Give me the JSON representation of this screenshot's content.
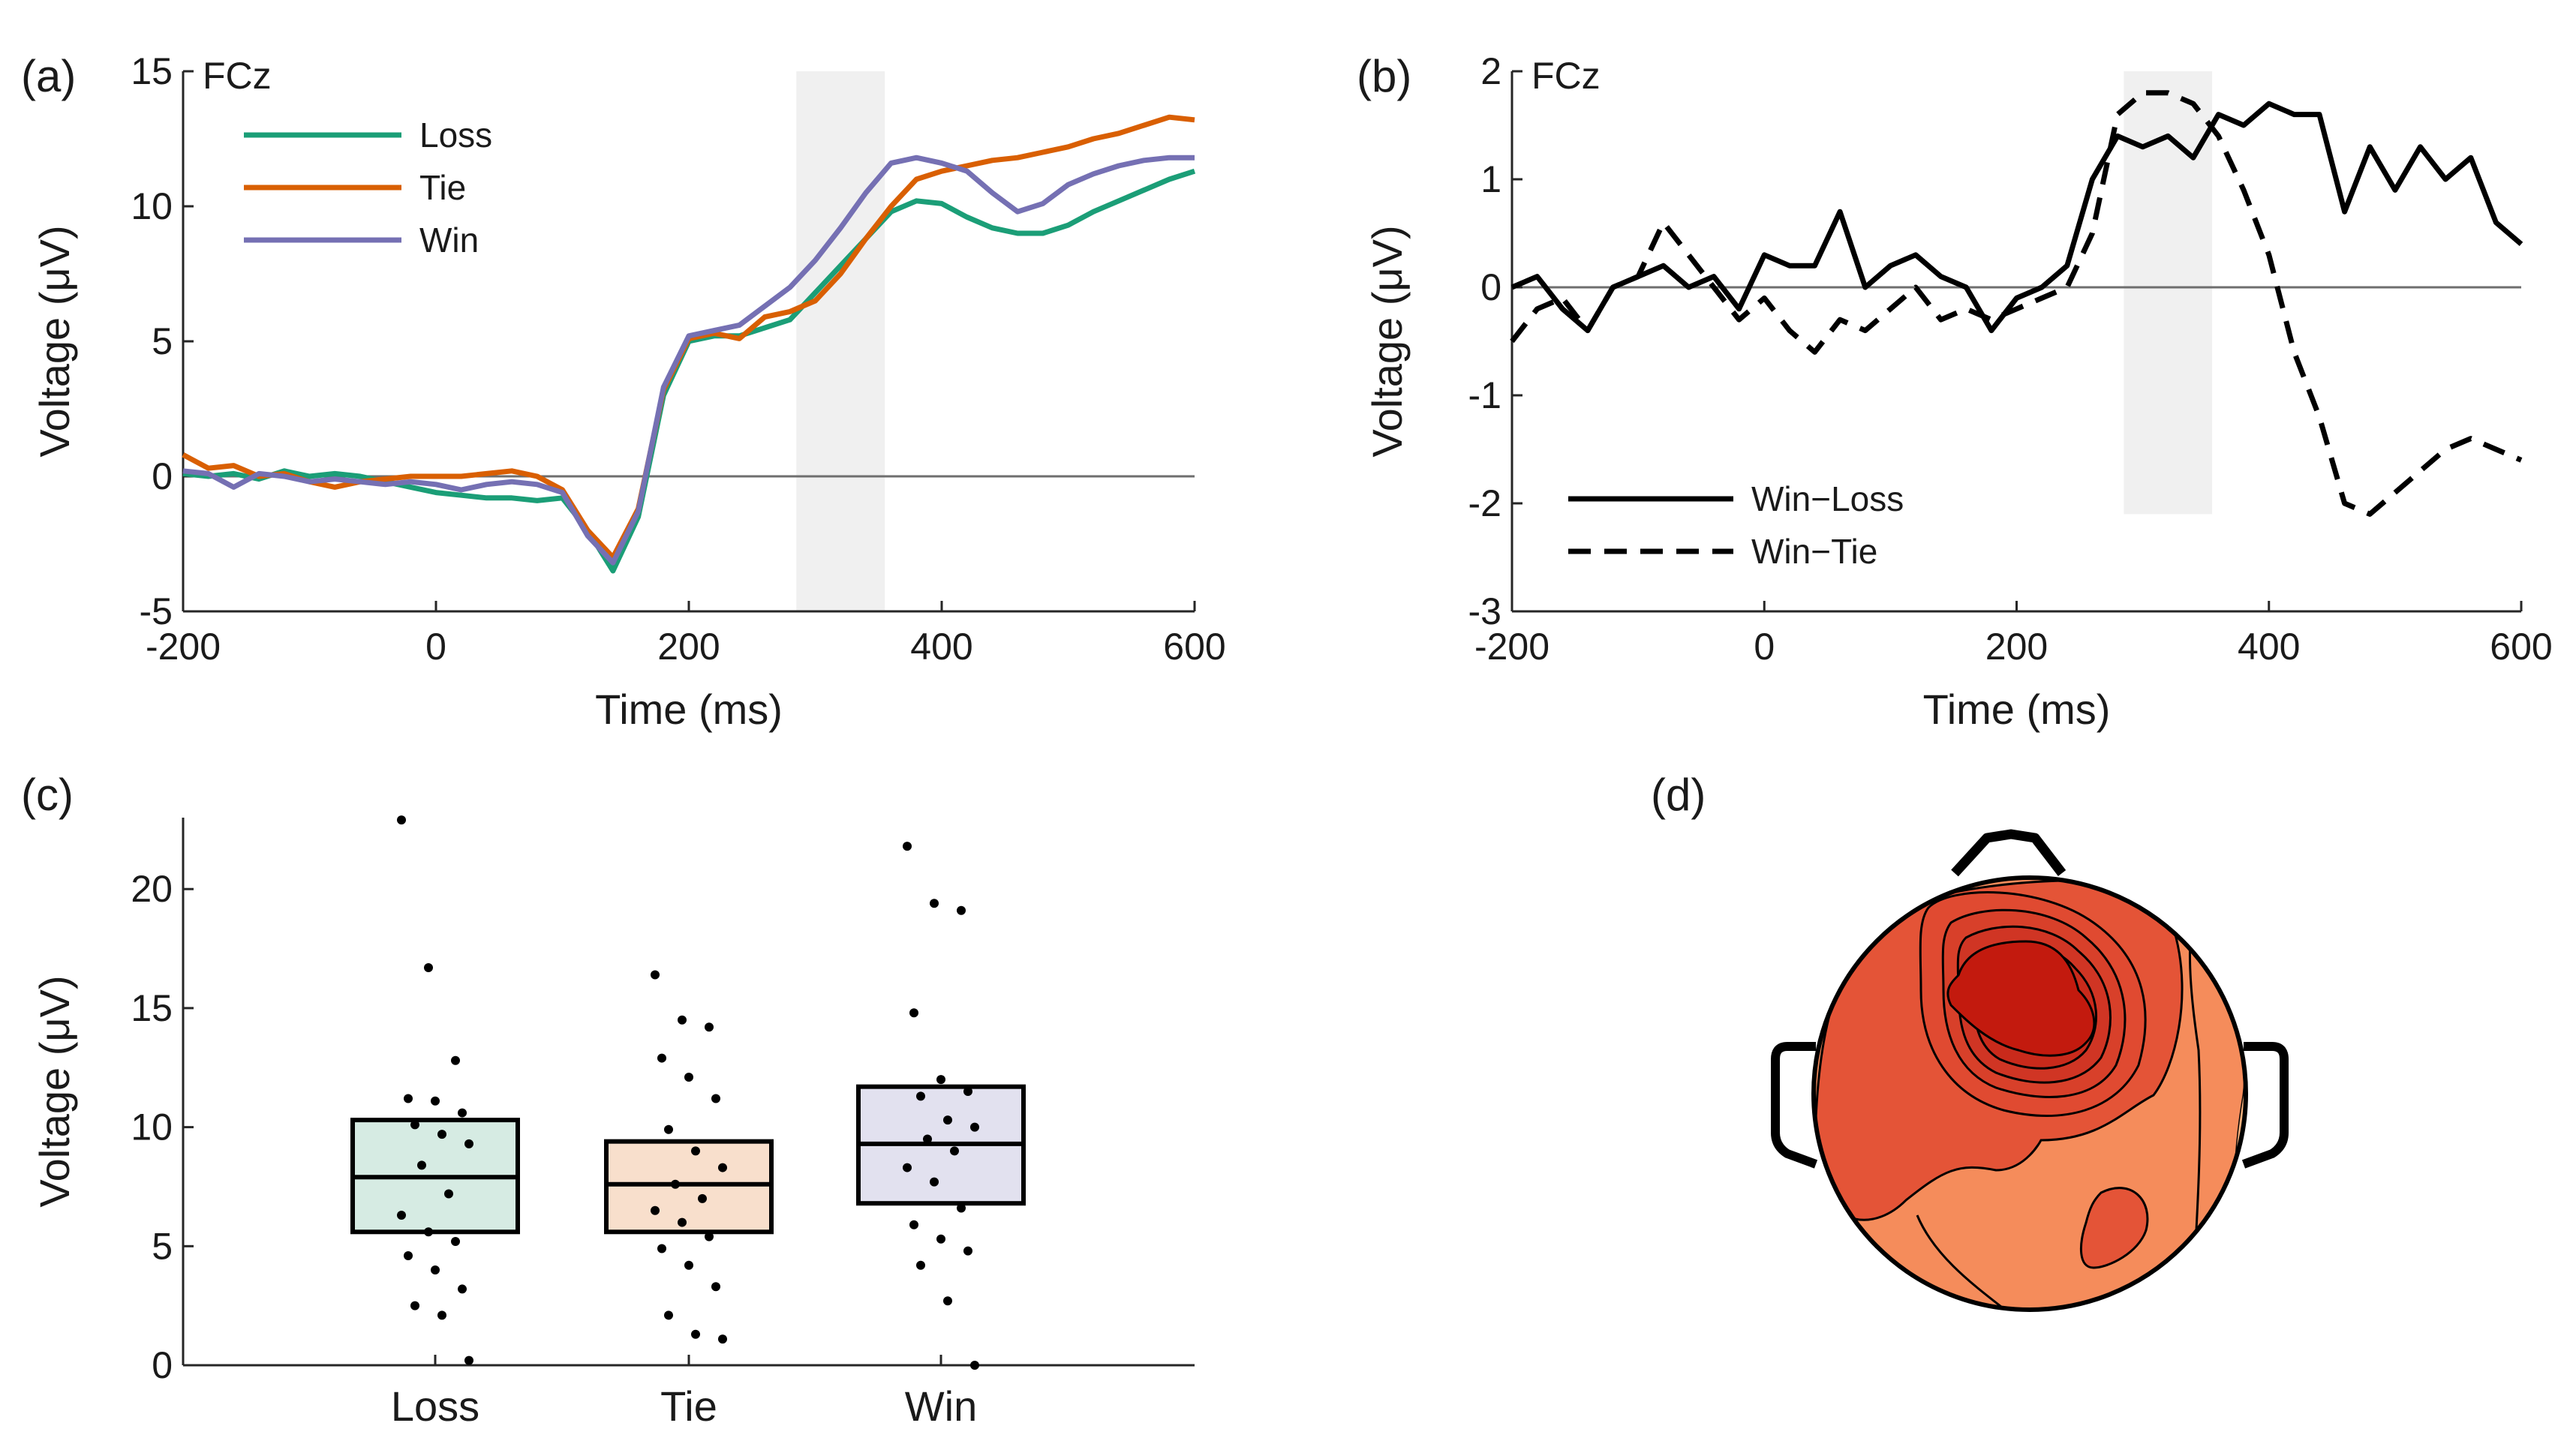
{
  "panels": {
    "a": {
      "label": "(a)",
      "electrode": "FCz",
      "xlabel": "Time (ms)",
      "ylabel": "Voltage (μV)",
      "xticks": [
        "-200",
        "0",
        "200",
        "400",
        "600"
      ],
      "yticks": [
        "-5",
        "0",
        "5",
        "10",
        "15"
      ]
    },
    "b": {
      "label": "(b)",
      "electrode": "FCz",
      "xlabel": "Time (ms)",
      "ylabel": "Voltage (μV)",
      "xticks": [
        "-200",
        "0",
        "200",
        "400",
        "600"
      ],
      "yticks": [
        "-3",
        "-2",
        "-1",
        "0",
        "1",
        "2"
      ]
    },
    "c": {
      "label": "(c)",
      "ylabel": "Voltage (μV)",
      "yticks": [
        "0",
        "5",
        "10",
        "15",
        "20"
      ]
    },
    "d": {
      "label": "(d)"
    }
  },
  "colors": {
    "loss": "#1b9e77",
    "tie": "#d95f02",
    "win": "#7570b3",
    "loss_box": "#d6ebe3",
    "tie_box": "#f8dfcc",
    "win_box": "#e2e1ef",
    "shade": "#f0f0f0",
    "topo_low": "#f7b27e",
    "topo_mid": "#ef7f4e",
    "topo_high": "#c31a0e"
  },
  "chart_data": [
    {
      "id": "a",
      "type": "line",
      "title": "FCz",
      "xlabel": "Time (ms)",
      "ylabel": "Voltage (μV)",
      "xlim": [
        -200,
        600
      ],
      "ylim": [
        -5,
        15
      ],
      "shaded_window": [
        285,
        355
      ],
      "zero_line": true,
      "legend_position": "top-left",
      "series": [
        {
          "name": "Loss",
          "x": [
            -200,
            -180,
            -160,
            -140,
            -120,
            -100,
            -80,
            -60,
            -40,
            -20,
            0,
            20,
            40,
            60,
            80,
            100,
            120,
            140,
            160,
            180,
            200,
            220,
            240,
            260,
            280,
            300,
            320,
            340,
            360,
            380,
            400,
            420,
            440,
            460,
            480,
            500,
            520,
            540,
            560,
            580,
            600
          ],
          "y": [
            0.1,
            0.0,
            0.1,
            -0.1,
            0.2,
            0.0,
            0.1,
            0.0,
            -0.2,
            -0.4,
            -0.6,
            -0.7,
            -0.8,
            -0.8,
            -0.9,
            -0.8,
            -2.0,
            -3.5,
            -1.5,
            3.0,
            5.0,
            5.2,
            5.2,
            5.5,
            5.8,
            6.8,
            7.8,
            8.8,
            9.8,
            10.2,
            10.1,
            9.6,
            9.2,
            9.0,
            9.0,
            9.3,
            9.8,
            10.2,
            10.6,
            11.0,
            11.3
          ]
        },
        {
          "name": "Tie",
          "x": [
            -200,
            -180,
            -160,
            -140,
            -120,
            -100,
            -80,
            -60,
            -40,
            -20,
            0,
            20,
            40,
            60,
            80,
            100,
            120,
            140,
            160,
            180,
            200,
            220,
            240,
            260,
            280,
            300,
            320,
            340,
            360,
            380,
            400,
            420,
            440,
            460,
            480,
            500,
            520,
            540,
            560,
            580,
            600
          ],
          "y": [
            0.8,
            0.3,
            0.4,
            0.0,
            0.1,
            -0.2,
            -0.4,
            -0.2,
            -0.1,
            0.0,
            0.0,
            0.0,
            0.1,
            0.2,
            0.0,
            -0.5,
            -2.0,
            -3.0,
            -1.2,
            3.2,
            5.1,
            5.3,
            5.1,
            5.9,
            6.1,
            6.5,
            7.5,
            8.8,
            10.0,
            11.0,
            11.3,
            11.5,
            11.7,
            11.8,
            12.0,
            12.2,
            12.5,
            12.7,
            13.0,
            13.3,
            13.2
          ]
        },
        {
          "name": "Win",
          "x": [
            -200,
            -180,
            -160,
            -140,
            -120,
            -100,
            -80,
            -60,
            -40,
            -20,
            0,
            20,
            40,
            60,
            80,
            100,
            120,
            140,
            160,
            180,
            200,
            220,
            240,
            260,
            280,
            300,
            320,
            340,
            360,
            380,
            400,
            420,
            440,
            460,
            480,
            500,
            520,
            540,
            560,
            580,
            600
          ],
          "y": [
            0.2,
            0.1,
            -0.4,
            0.1,
            0.0,
            -0.2,
            -0.1,
            -0.2,
            -0.3,
            -0.2,
            -0.3,
            -0.5,
            -0.3,
            -0.2,
            -0.3,
            -0.6,
            -2.2,
            -3.2,
            -1.3,
            3.3,
            5.2,
            5.4,
            5.6,
            6.3,
            7.0,
            8.0,
            9.2,
            10.5,
            11.6,
            11.8,
            11.6,
            11.3,
            10.5,
            9.8,
            10.1,
            10.8,
            11.2,
            11.5,
            11.7,
            11.8,
            11.8
          ]
        }
      ]
    },
    {
      "id": "b",
      "type": "line",
      "title": "FCz",
      "xlabel": "Time (ms)",
      "ylabel": "Voltage (μV)",
      "xlim": [
        -200,
        600
      ],
      "ylim": [
        -3,
        2
      ],
      "shaded_window": [
        285,
        355
      ],
      "shaded_range_y": [
        -2.1,
        2.0
      ],
      "zero_line": true,
      "legend_position": "bottom-left",
      "series": [
        {
          "name": "Win−Loss",
          "style": "solid",
          "x": [
            -200,
            -180,
            -160,
            -140,
            -120,
            -100,
            -80,
            -60,
            -40,
            -20,
            0,
            20,
            40,
            60,
            80,
            100,
            120,
            140,
            160,
            180,
            200,
            220,
            240,
            260,
            280,
            300,
            320,
            340,
            360,
            380,
            400,
            420,
            440,
            460,
            480,
            500,
            520,
            540,
            560,
            580,
            600
          ],
          "y": [
            0.0,
            0.1,
            -0.2,
            -0.4,
            0.0,
            0.1,
            0.2,
            0.0,
            0.1,
            -0.2,
            0.3,
            0.2,
            0.2,
            0.7,
            0.0,
            0.2,
            0.3,
            0.1,
            0.0,
            -0.4,
            -0.1,
            0.0,
            0.2,
            1.0,
            1.4,
            1.3,
            1.4,
            1.2,
            1.6,
            1.5,
            1.7,
            1.6,
            1.6,
            0.7,
            1.3,
            0.9,
            1.3,
            1.0,
            1.2,
            0.6,
            0.4
          ]
        },
        {
          "name": "Win−Tie",
          "style": "dashed",
          "x": [
            -200,
            -180,
            -160,
            -140,
            -120,
            -100,
            -80,
            -60,
            -40,
            -20,
            0,
            20,
            40,
            60,
            80,
            100,
            120,
            140,
            160,
            180,
            200,
            220,
            240,
            260,
            280,
            300,
            320,
            340,
            360,
            380,
            400,
            420,
            440,
            460,
            480,
            500,
            520,
            540,
            560,
            580,
            600
          ],
          "y": [
            -0.5,
            -0.2,
            -0.1,
            -0.4,
            0.0,
            0.1,
            0.6,
            0.3,
            0.0,
            -0.3,
            -0.1,
            -0.4,
            -0.6,
            -0.3,
            -0.4,
            -0.2,
            0.0,
            -0.3,
            -0.2,
            -0.3,
            -0.2,
            -0.1,
            0.0,
            0.5,
            1.6,
            1.8,
            1.8,
            1.7,
            1.4,
            0.9,
            0.3,
            -0.6,
            -1.2,
            -2.0,
            -2.1,
            -1.9,
            -1.7,
            -1.5,
            -1.4,
            -1.5,
            -1.6
          ]
        }
      ]
    },
    {
      "id": "c",
      "type": "box",
      "ylabel": "Voltage (μV)",
      "ylim": [
        0,
        23
      ],
      "categories": [
        "Loss",
        "Tie",
        "Win"
      ],
      "boxes": [
        {
          "name": "Loss",
          "q1": 5.6,
          "median": 7.9,
          "q3": 10.3
        },
        {
          "name": "Tie",
          "q1": 5.6,
          "median": 7.6,
          "q3": 9.4
        },
        {
          "name": "Win",
          "q1": 6.8,
          "median": 9.3,
          "q3": 11.7
        }
      ],
      "points": [
        [
          22.9,
          16.7,
          12.8,
          11.2,
          11.1,
          10.6,
          10.1,
          9.7,
          9.3,
          8.4,
          7.2,
          6.3,
          5.6,
          5.2,
          4.6,
          4.0,
          3.2,
          2.5,
          2.1,
          0.2
        ],
        [
          16.4,
          14.5,
          14.2,
          12.9,
          12.1,
          11.2,
          9.9,
          9.0,
          8.3,
          7.6,
          7.0,
          6.5,
          6.0,
          5.4,
          4.9,
          4.2,
          3.3,
          2.1,
          1.3,
          1.1
        ],
        [
          21.8,
          19.4,
          19.1,
          14.8,
          12.0,
          11.5,
          11.3,
          10.3,
          10.0,
          9.5,
          9.0,
          8.3,
          7.7,
          6.6,
          5.9,
          5.3,
          4.8,
          4.2,
          2.7,
          0.0
        ]
      ]
    }
  ]
}
